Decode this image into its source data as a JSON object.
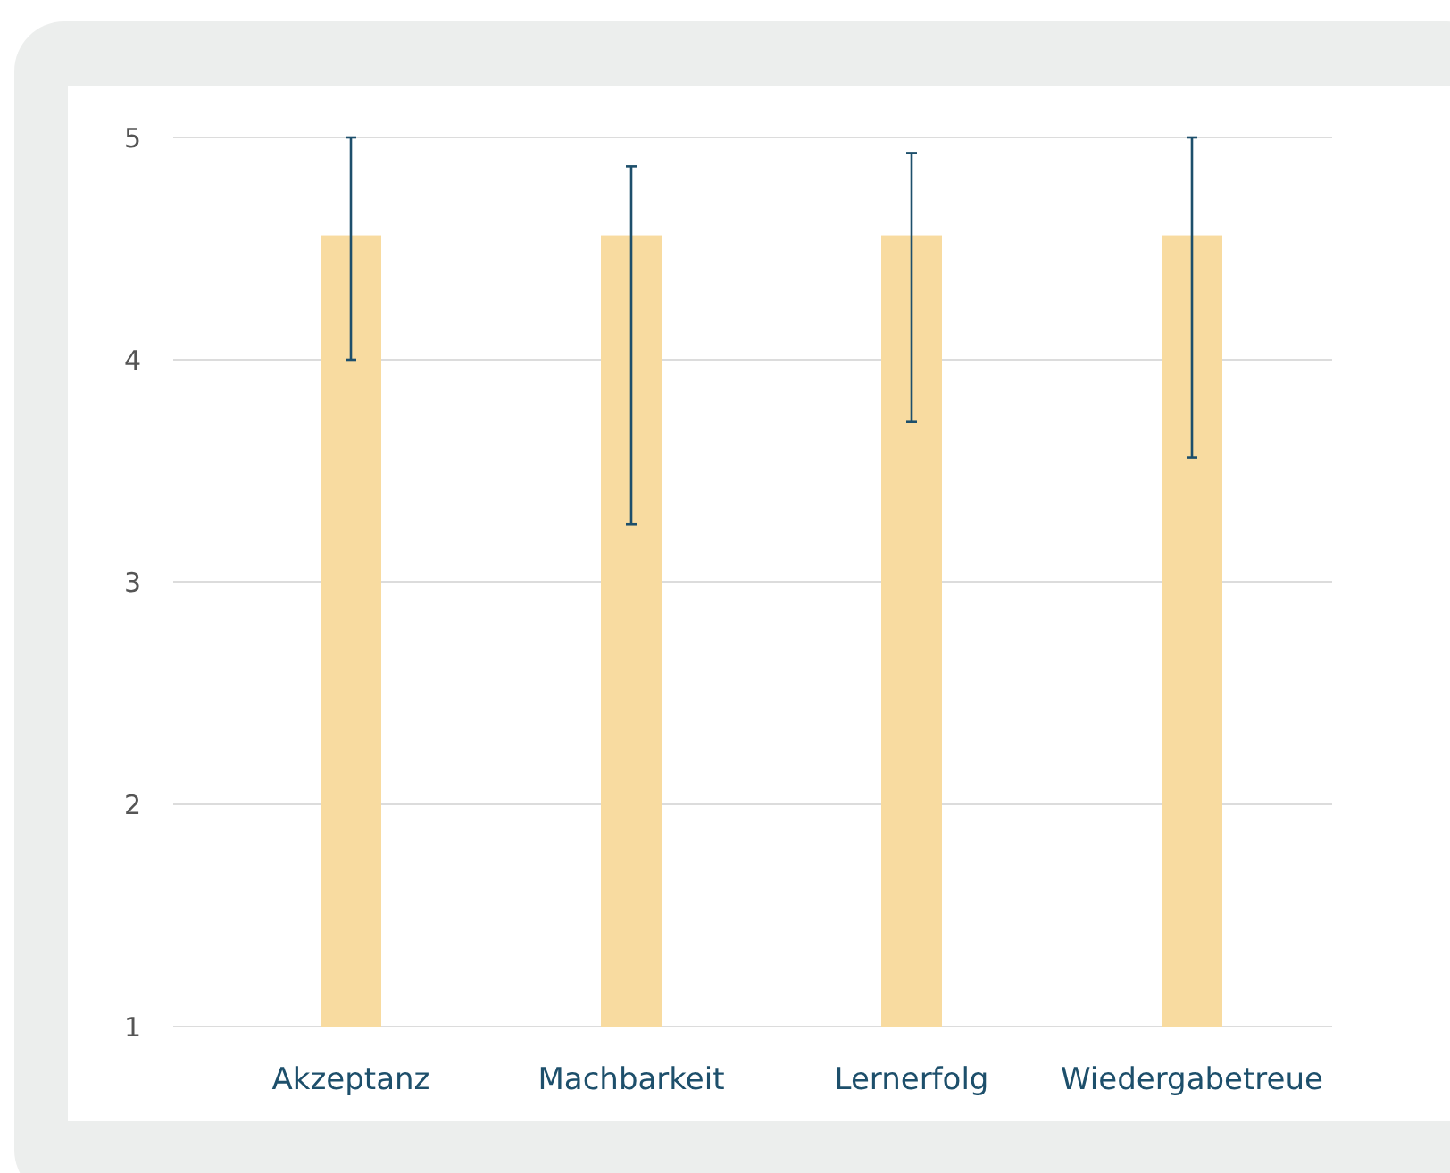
{
  "chart_data": {
    "type": "bar",
    "categories": [
      "Akzeptanz",
      "Machbarkeit",
      "Lernerfolg",
      "Wiedergabetreue"
    ],
    "values": [
      4.56,
      4.56,
      4.56,
      4.56
    ],
    "errors": [
      [
        4.0,
        5.0
      ],
      [
        3.26,
        4.87
      ],
      [
        3.72,
        4.93
      ],
      [
        3.56,
        5.0
      ]
    ],
    "color": "#f8dba0",
    "ylim": [
      1,
      5
    ],
    "yticks": [
      1,
      2,
      3,
      4,
      5
    ],
    "grid": "y"
  }
}
